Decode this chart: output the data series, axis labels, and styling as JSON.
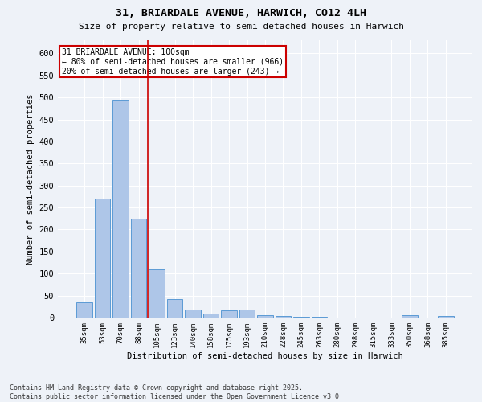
{
  "title1": "31, BRIARDALE AVENUE, HARWICH, CO12 4LH",
  "title2": "Size of property relative to semi-detached houses in Harwich",
  "xlabel": "Distribution of semi-detached houses by size in Harwich",
  "ylabel": "Number of semi-detached properties",
  "categories": [
    "35sqm",
    "53sqm",
    "70sqm",
    "88sqm",
    "105sqm",
    "123sqm",
    "140sqm",
    "158sqm",
    "175sqm",
    "193sqm",
    "210sqm",
    "228sqm",
    "245sqm",
    "263sqm",
    "280sqm",
    "298sqm",
    "315sqm",
    "333sqm",
    "350sqm",
    "368sqm",
    "385sqm"
  ],
  "values": [
    35,
    270,
    493,
    224,
    110,
    42,
    18,
    10,
    16,
    18,
    5,
    3,
    1,
    1,
    0,
    0,
    0,
    0,
    5,
    0,
    3
  ],
  "bar_color": "#aec6e8",
  "bar_edge_color": "#5b9bd5",
  "vline_index": 3.5,
  "annotation_text": "31 BRIARDALE AVENUE: 100sqm\n← 80% of semi-detached houses are smaller (966)\n20% of semi-detached houses are larger (243) →",
  "annotation_box_color": "#ffffff",
  "annotation_box_edge_color": "#cc0000",
  "vline_color": "#cc0000",
  "footer": "Contains HM Land Registry data © Crown copyright and database right 2025.\nContains public sector information licensed under the Open Government Licence v3.0.",
  "ylim": [
    0,
    630
  ],
  "yticks": [
    0,
    50,
    100,
    150,
    200,
    250,
    300,
    350,
    400,
    450,
    500,
    550,
    600
  ],
  "background_color": "#eef2f8",
  "grid_color": "#ffffff"
}
